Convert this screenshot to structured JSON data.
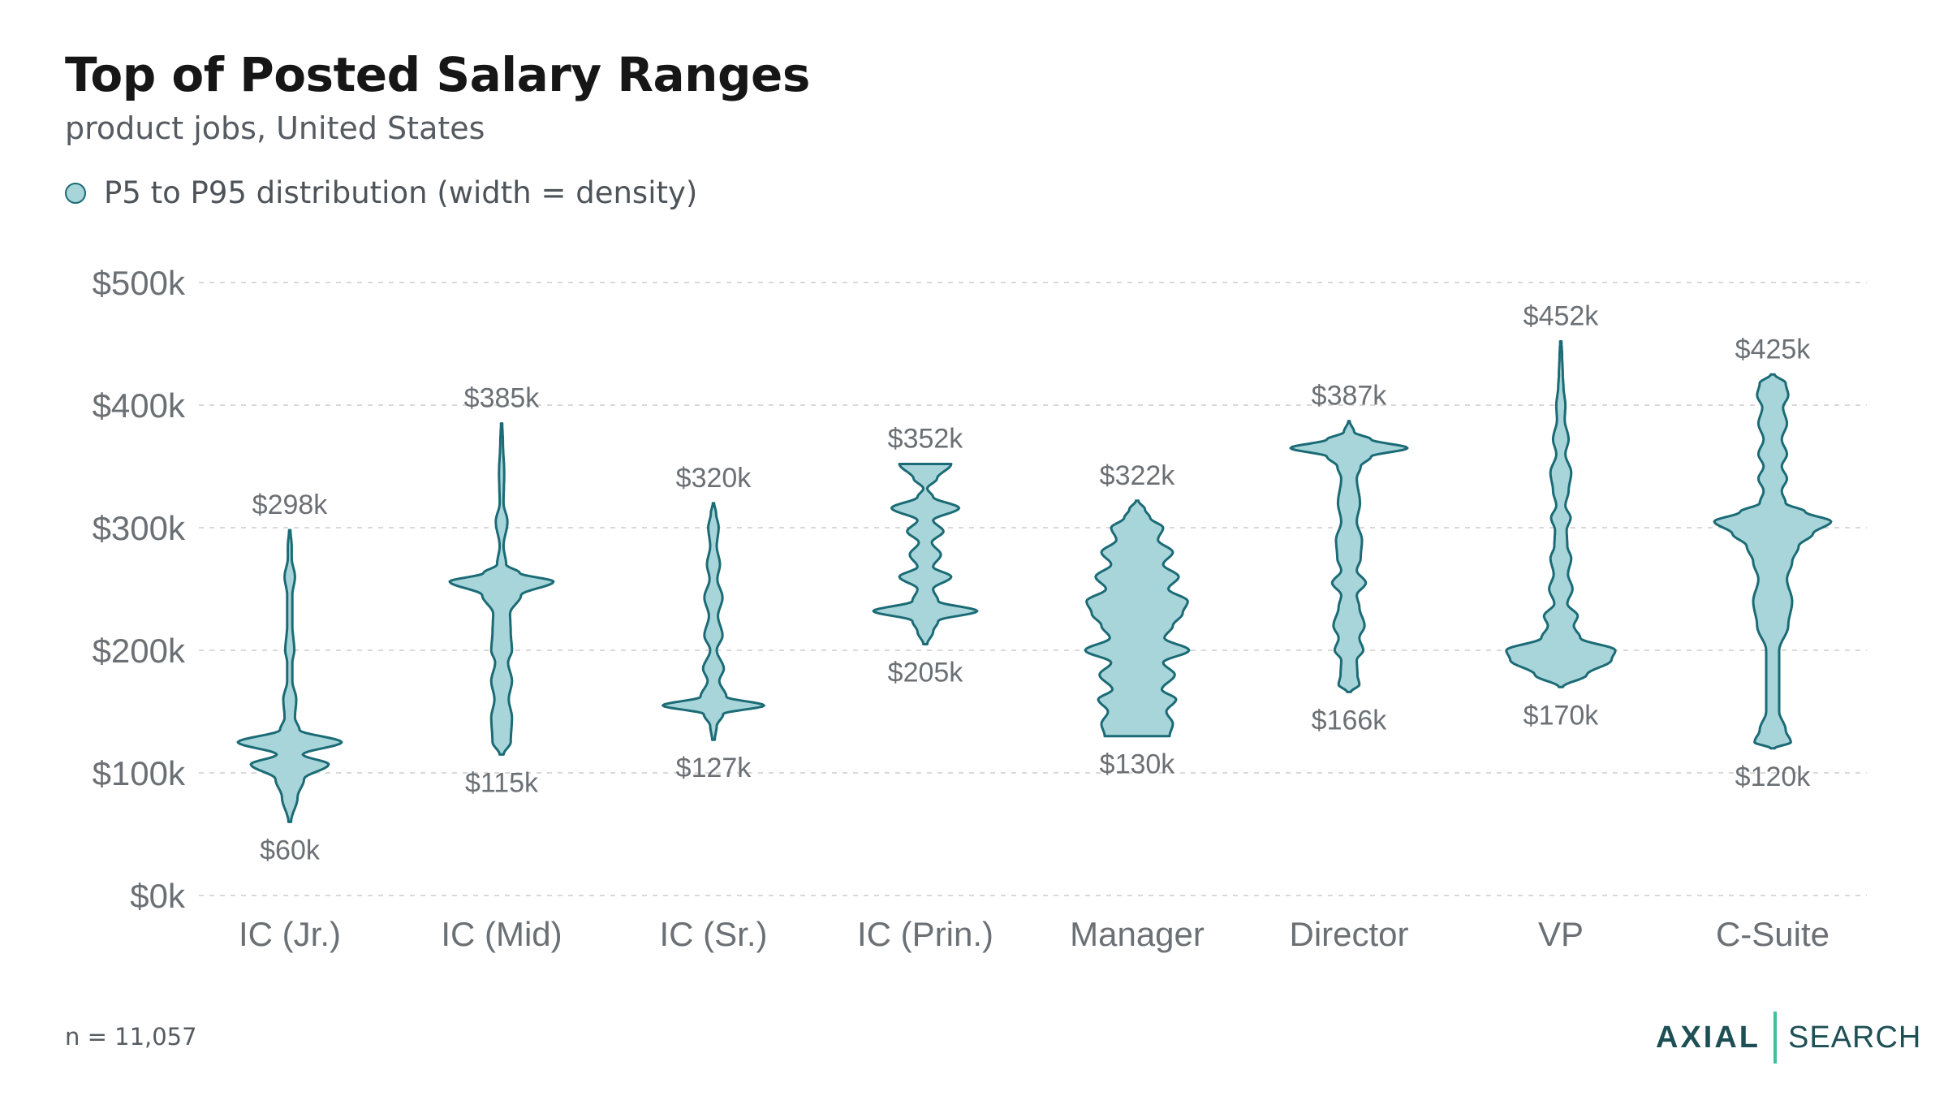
{
  "header": {
    "title": "Top of Posted Salary Ranges",
    "subtitle": "product jobs, United States"
  },
  "legend": {
    "label": "P5 to P95 distribution (width = density)"
  },
  "footer": {
    "note": "n = 11,057",
    "brand_left": "AXIAL",
    "brand_right": "SEARCH"
  },
  "colors": {
    "fill": "#a8d5d9",
    "stroke": "#1b6b76",
    "grid": "#d9d9d9",
    "axis_text": "#6b7075"
  },
  "chart_data": {
    "type": "violin",
    "title": "Top of Posted Salary Ranges",
    "subtitle": "product jobs, United States",
    "legend_position": "top-left",
    "grid": true,
    "y_unit": "$k",
    "ylim": [
      0,
      500
    ],
    "yticks": [
      0,
      100,
      200,
      300,
      400,
      500
    ],
    "ytick_labels": [
      "$0k",
      "$100k",
      "$200k",
      "$300k",
      "$400k",
      "$500k"
    ],
    "categories": [
      "IC (Jr.)",
      "IC (Mid)",
      "IC (Sr.)",
      "IC (Prin.)",
      "Manager",
      "Director",
      "VP",
      "C-Suite"
    ],
    "series": [
      {
        "category": "IC (Jr.)",
        "p5": 60,
        "p95": 298,
        "min_label": "$60k",
        "max_label": "$298k",
        "profile": [
          [
            60,
            2
          ],
          [
            80,
            12
          ],
          [
            95,
            22
          ],
          [
            107,
            60
          ],
          [
            115,
            20
          ],
          [
            125,
            80
          ],
          [
            135,
            15
          ],
          [
            145,
            8
          ],
          [
            160,
            10
          ],
          [
            175,
            4
          ],
          [
            190,
            4
          ],
          [
            200,
            7
          ],
          [
            220,
            4
          ],
          [
            245,
            4
          ],
          [
            260,
            8
          ],
          [
            275,
            3
          ],
          [
            285,
            3
          ],
          [
            298,
            1
          ]
        ]
      },
      {
        "category": "IC (Mid)",
        "p5": 115,
        "p95": 385,
        "min_label": "$115k",
        "max_label": "$385k",
        "profile": [
          [
            115,
            3
          ],
          [
            125,
            14
          ],
          [
            145,
            16
          ],
          [
            160,
            11
          ],
          [
            175,
            16
          ],
          [
            190,
            10
          ],
          [
            200,
            16
          ],
          [
            215,
            14
          ],
          [
            230,
            13
          ],
          [
            245,
            30
          ],
          [
            256,
            80
          ],
          [
            263,
            28
          ],
          [
            270,
            7
          ],
          [
            285,
            3
          ],
          [
            305,
            9
          ],
          [
            320,
            3
          ],
          [
            345,
            4
          ],
          [
            370,
            2
          ],
          [
            385,
            1
          ]
        ]
      },
      {
        "category": "IC (Sr.)",
        "p5": 127,
        "p95": 320,
        "min_label": "$127k",
        "max_label": "$320k",
        "profile": [
          [
            127,
            2
          ],
          [
            138,
            5
          ],
          [
            148,
            15
          ],
          [
            155,
            78
          ],
          [
            162,
            20
          ],
          [
            175,
            9
          ],
          [
            185,
            16
          ],
          [
            200,
            5
          ],
          [
            212,
            14
          ],
          [
            228,
            7
          ],
          [
            243,
            14
          ],
          [
            258,
            6
          ],
          [
            270,
            10
          ],
          [
            285,
            5
          ],
          [
            300,
            8
          ],
          [
            312,
            4
          ],
          [
            320,
            1
          ]
        ]
      },
      {
        "category": "IC (Prin.)",
        "p5": 205,
        "p95": 352,
        "min_label": "$205k",
        "max_label": "$352k",
        "profile": [
          [
            205,
            3
          ],
          [
            215,
            12
          ],
          [
            224,
            20
          ],
          [
            232,
            80
          ],
          [
            240,
            20
          ],
          [
            250,
            12
          ],
          [
            260,
            40
          ],
          [
            268,
            12
          ],
          [
            278,
            24
          ],
          [
            288,
            10
          ],
          [
            297,
            28
          ],
          [
            306,
            12
          ],
          [
            316,
            52
          ],
          [
            325,
            12
          ],
          [
            332,
            3
          ],
          [
            340,
            18
          ],
          [
            352,
            40
          ]
        ]
      },
      {
        "category": "Manager",
        "p5": 130,
        "p95": 322,
        "min_label": "$130k",
        "max_label": "$322k",
        "profile": [
          [
            130,
            50
          ],
          [
            140,
            55
          ],
          [
            150,
            45
          ],
          [
            160,
            60
          ],
          [
            168,
            38
          ],
          [
            180,
            58
          ],
          [
            190,
            40
          ],
          [
            200,
            80
          ],
          [
            210,
            42
          ],
          [
            220,
            55
          ],
          [
            230,
            70
          ],
          [
            240,
            78
          ],
          [
            250,
            48
          ],
          [
            260,
            64
          ],
          [
            270,
            40
          ],
          [
            280,
            55
          ],
          [
            290,
            32
          ],
          [
            300,
            40
          ],
          [
            308,
            20
          ],
          [
            315,
            12
          ],
          [
            322,
            2
          ]
        ]
      },
      {
        "category": "Director",
        "p5": 166,
        "p95": 387,
        "min_label": "$166k",
        "max_label": "$387k",
        "profile": [
          [
            166,
            3
          ],
          [
            172,
            16
          ],
          [
            180,
            13
          ],
          [
            192,
            12
          ],
          [
            200,
            22
          ],
          [
            210,
            16
          ],
          [
            220,
            24
          ],
          [
            235,
            16
          ],
          [
            245,
            12
          ],
          [
            255,
            26
          ],
          [
            265,
            12
          ],
          [
            275,
            18
          ],
          [
            290,
            20
          ],
          [
            305,
            12
          ],
          [
            320,
            17
          ],
          [
            340,
            12
          ],
          [
            350,
            18
          ],
          [
            358,
            34
          ],
          [
            365,
            90
          ],
          [
            372,
            34
          ],
          [
            378,
            8
          ],
          [
            387,
            1
          ]
        ]
      },
      {
        "category": "VP",
        "p5": 170,
        "p95": 452,
        "min_label": "$170k",
        "max_label": "$452k",
        "profile": [
          [
            170,
            3
          ],
          [
            180,
            40
          ],
          [
            192,
            78
          ],
          [
            200,
            84
          ],
          [
            210,
            30
          ],
          [
            220,
            20
          ],
          [
            228,
            26
          ],
          [
            238,
            10
          ],
          [
            250,
            18
          ],
          [
            262,
            11
          ],
          [
            275,
            16
          ],
          [
            285,
            10
          ],
          [
            298,
            9
          ],
          [
            308,
            15
          ],
          [
            318,
            7
          ],
          [
            330,
            12
          ],
          [
            345,
            16
          ],
          [
            360,
            7
          ],
          [
            372,
            12
          ],
          [
            388,
            6
          ],
          [
            400,
            7
          ],
          [
            415,
            4
          ],
          [
            425,
            3
          ],
          [
            440,
            2
          ],
          [
            452,
            1
          ]
        ]
      },
      {
        "category": "C-Suite",
        "p5": 120,
        "p95": 425,
        "min_label": "$120k",
        "max_label": "$425k",
        "profile": [
          [
            120,
            3
          ],
          [
            125,
            28
          ],
          [
            135,
            20
          ],
          [
            150,
            10
          ],
          [
            170,
            10
          ],
          [
            185,
            10
          ],
          [
            200,
            10
          ],
          [
            220,
            24
          ],
          [
            240,
            30
          ],
          [
            258,
            22
          ],
          [
            272,
            30
          ],
          [
            285,
            40
          ],
          [
            295,
            62
          ],
          [
            305,
            90
          ],
          [
            313,
            50
          ],
          [
            320,
            20
          ],
          [
            330,
            14
          ],
          [
            340,
            22
          ],
          [
            350,
            14
          ],
          [
            360,
            22
          ],
          [
            372,
            14
          ],
          [
            385,
            22
          ],
          [
            398,
            16
          ],
          [
            408,
            24
          ],
          [
            418,
            20
          ],
          [
            425,
            3
          ]
        ]
      }
    ]
  }
}
